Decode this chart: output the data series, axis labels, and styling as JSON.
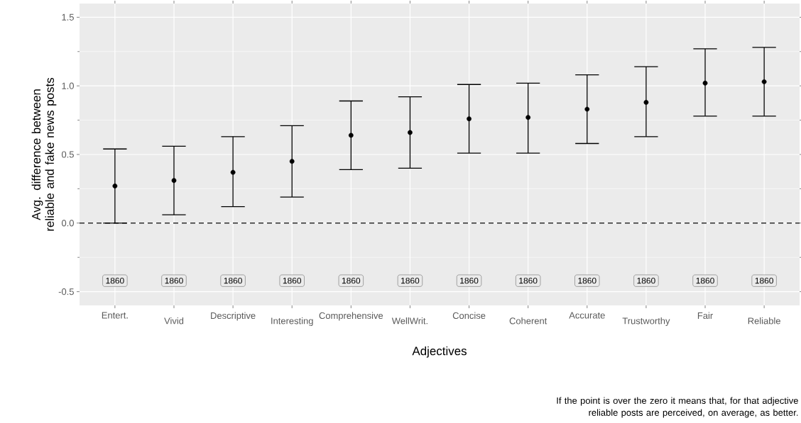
{
  "chart_data": {
    "type": "scatter",
    "xlabel": "Adjectives",
    "ylabel": "Avg. difference between reliable and fake news posts",
    "categories": [
      "Entert.",
      "Vivid",
      "Descriptive",
      "Interesting",
      "Comprehensive",
      "WellWrit.",
      "Concise",
      "Coherent",
      "Accurate",
      "Trustworthy",
      "Fair",
      "Reliable"
    ],
    "values": [
      0.27,
      0.31,
      0.37,
      0.45,
      0.64,
      0.66,
      0.76,
      0.77,
      0.83,
      0.88,
      1.02,
      1.03
    ],
    "errors": [
      [
        0.0,
        0.54
      ],
      [
        0.06,
        0.56
      ],
      [
        0.12,
        0.63
      ],
      [
        0.19,
        0.71
      ],
      [
        0.39,
        0.89
      ],
      [
        0.4,
        0.92
      ],
      [
        0.51,
        1.01
      ],
      [
        0.51,
        1.02
      ],
      [
        0.58,
        1.08
      ],
      [
        0.63,
        1.14
      ],
      [
        0.78,
        1.27
      ],
      [
        0.78,
        1.28
      ]
    ],
    "color": "#000000",
    "marker": "circle",
    "grid": true,
    "ylim": [
      -0.6,
      1.6
    ],
    "yticks": [
      -0.5,
      {
        "value": 0,
        "label": "0.0"
      },
      0.5,
      {
        "value": 1,
        "label": "1.0"
      },
      1.5
    ],
    "ref_lines": [
      {
        "axis": "y",
        "value": 0,
        "line_style": "dashed",
        "color": "#000000"
      }
    ],
    "annotations": [
      {
        "text": "1860",
        "x": "Entert.",
        "y": -0.42
      },
      {
        "text": "1860",
        "x": "Vivid",
        "y": -0.42
      },
      {
        "text": "1860",
        "x": "Descriptive",
        "y": -0.42
      },
      {
        "text": "1860",
        "x": "Interesting",
        "y": -0.42
      },
      {
        "text": "1860",
        "x": "Comprehensive",
        "y": -0.42
      },
      {
        "text": "1860",
        "x": "WellWrit.",
        "y": -0.42
      },
      {
        "text": "1860",
        "x": "Concise",
        "y": -0.42
      },
      {
        "text": "1860",
        "x": "Coherent",
        "y": -0.42
      },
      {
        "text": "1860",
        "x": "Accurate",
        "y": -0.42
      },
      {
        "text": "1860",
        "x": "Trustworthy",
        "y": -0.42
      },
      {
        "text": "1860",
        "x": "Fair",
        "y": -0.42
      },
      {
        "text": "1860",
        "x": "Reliable",
        "y": -0.42
      },
      "If the point is over the zero it means that, for that adjective reliable posts are perceived, on average, as better."
    ]
  }
}
